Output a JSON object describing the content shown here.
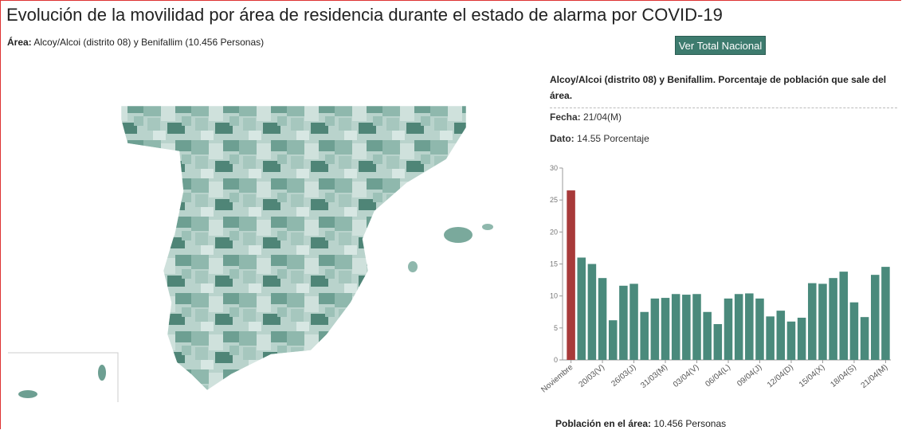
{
  "header": {
    "title": "Evolución de la movilidad por área de residencia durante el estado de alarma por COVID-19",
    "area_label": "Área:",
    "area_value": "Alcoy/Alcoi (distrito 08) y Benifallim (10.456 Personas)"
  },
  "button": "Ver Total Nacional",
  "panel": {
    "title": "Alcoy/Alcoi (distrito 08) y Benifallim. Porcentaje de población que sale del área.",
    "fecha_label": "Fecha:",
    "fecha_value": "21/04(M)",
    "dato_label": "Dato:",
    "dato_value": "14.55 Porcentaje",
    "poblacion_label": "Población en el área:",
    "poblacion_value": "10.456 Personas"
  },
  "chart_data": {
    "type": "bar",
    "categories": [
      "Noviembre",
      null,
      null,
      "20/03(V)",
      null,
      null,
      "26/03(J)",
      null,
      null,
      "31/03(M)",
      null,
      null,
      "03/04(V)",
      null,
      null,
      "06/04(L)",
      null,
      null,
      "09/04(J)",
      null,
      null,
      "12/04(D)",
      null,
      null,
      "15/04(X)",
      null,
      null,
      "18/04(S)",
      null,
      null,
      "21/04(M)"
    ],
    "values": [
      26.5,
      16,
      15,
      12.8,
      6.2,
      11.6,
      11.9,
      7.5,
      9.6,
      9.7,
      10.3,
      10.2,
      10.3,
      7.5,
      5.6,
      9.6,
      10.3,
      10.4,
      9.6,
      6.8,
      7.7,
      6.0,
      6.6,
      12.0,
      11.9,
      12.8,
      13.8,
      9.0,
      6.7,
      13.3,
      14.55
    ],
    "colors": [
      "#a83a3a",
      "#4a8a7c",
      "#4a8a7c",
      "#4a8a7c",
      "#4a8a7c",
      "#4a8a7c",
      "#4a8a7c",
      "#4a8a7c",
      "#4a8a7c",
      "#4a8a7c",
      "#4a8a7c",
      "#4a8a7c",
      "#4a8a7c",
      "#4a8a7c",
      "#4a8a7c",
      "#4a8a7c",
      "#4a8a7c",
      "#4a8a7c",
      "#4a8a7c",
      "#4a8a7c",
      "#4a8a7c",
      "#4a8a7c",
      "#4a8a7c",
      "#4a8a7c",
      "#4a8a7c",
      "#4a8a7c",
      "#4a8a7c",
      "#4a8a7c",
      "#4a8a7c",
      "#4a8a7c",
      "#4a8a7c"
    ],
    "ylim": [
      0,
      30
    ],
    "yticks": [
      0,
      5,
      10,
      15,
      20,
      25,
      30
    ],
    "grid": false
  }
}
